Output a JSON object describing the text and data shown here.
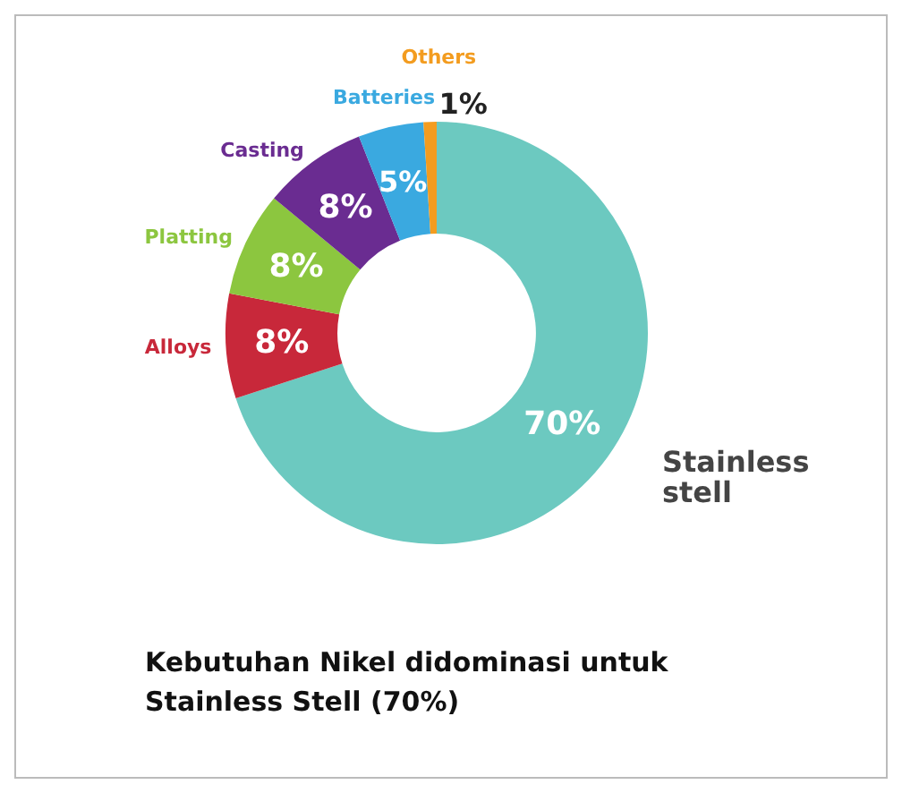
{
  "chart_data": {
    "type": "donut",
    "title": "Kebutuhan Nikel didominasi untuk Stainless Stell (70%)",
    "categories": [
      "Stainless stell",
      "Alloys",
      "Platting",
      "Casting",
      "Batteries",
      "Others"
    ],
    "values": [
      70,
      8,
      8,
      8,
      5,
      1
    ],
    "value_labels": [
      "70%",
      "8%",
      "8%",
      "8%",
      "5%",
      "1%"
    ],
    "colors": [
      "#6cc9c0",
      "#c8283a",
      "#8cc63f",
      "#6a2c91",
      "#3aa9e0",
      "#f39c1f"
    ],
    "legend": false
  }
}
